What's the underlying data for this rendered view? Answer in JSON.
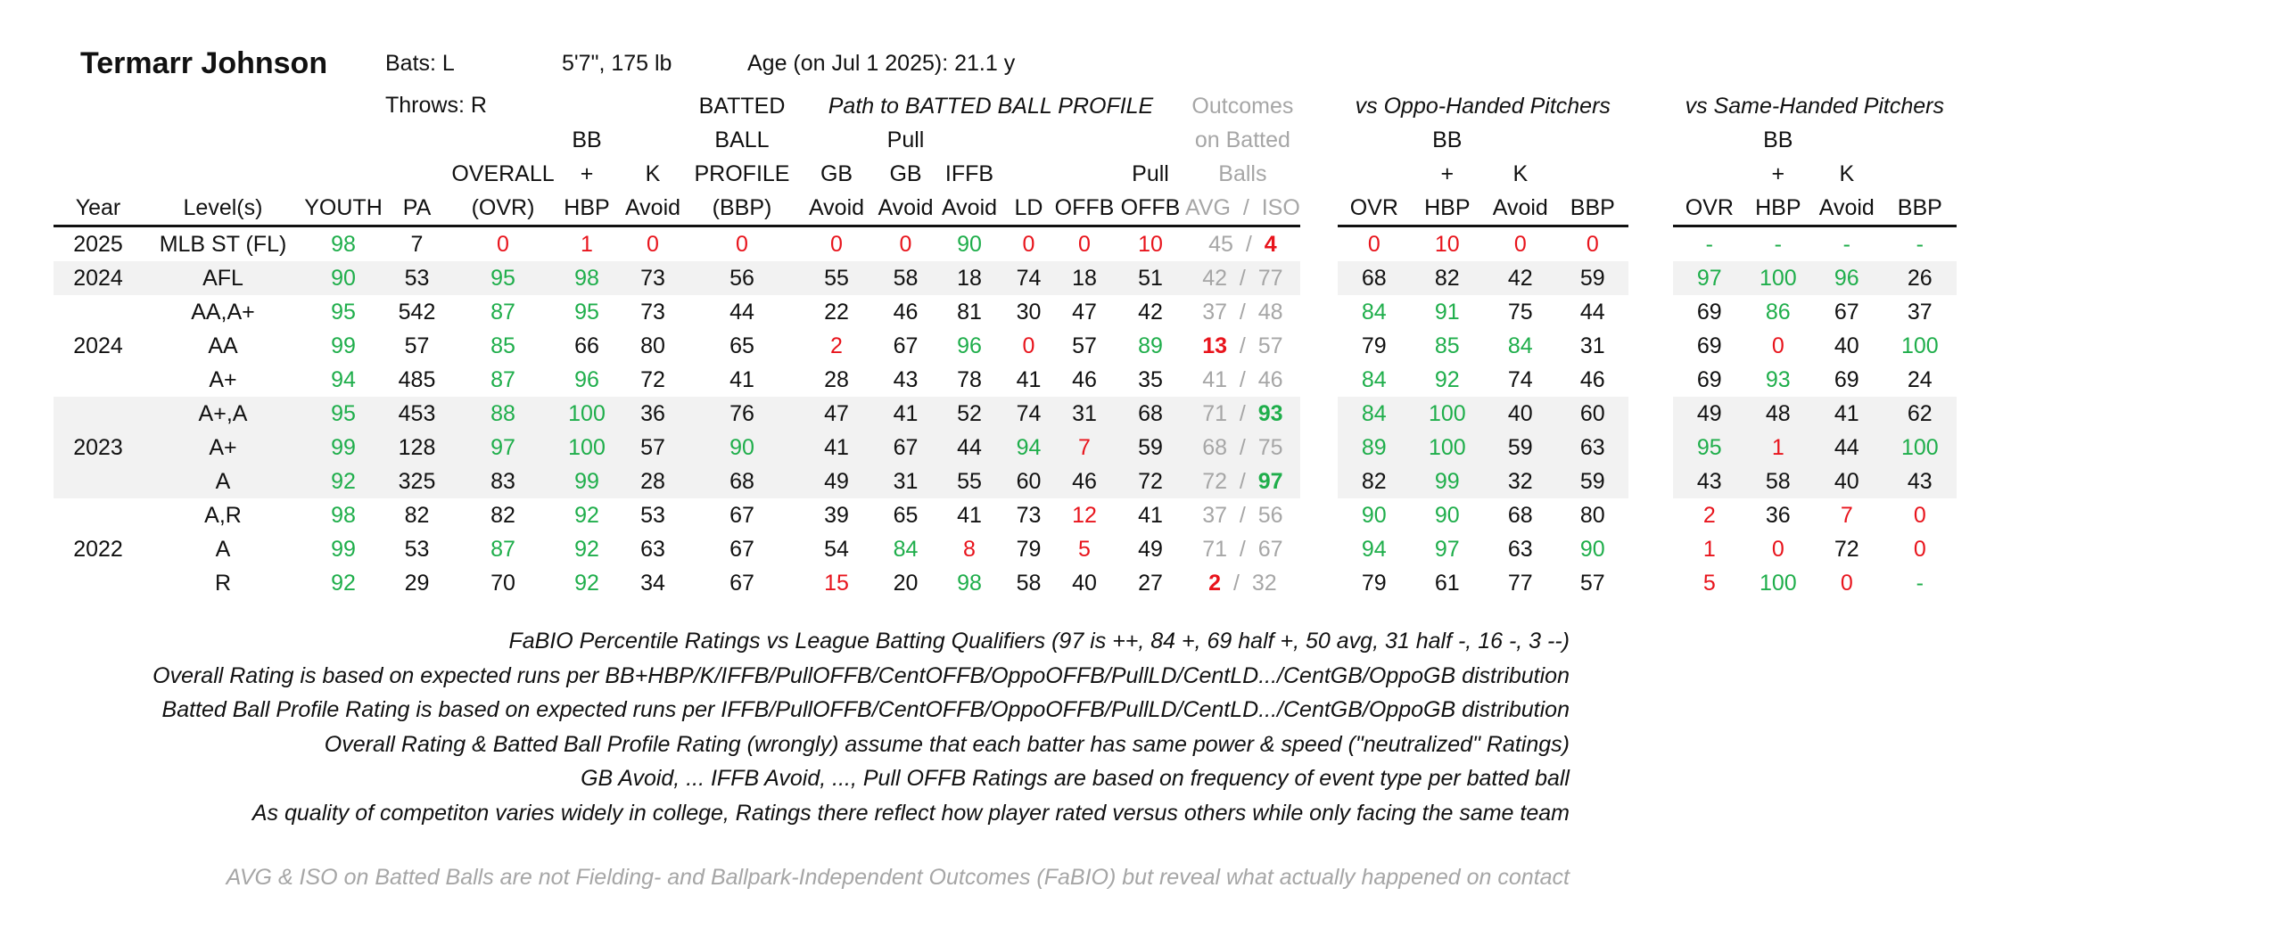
{
  "player": {
    "name": "Termarr Johnson",
    "bats": "Bats: L",
    "throws": "Throws: R",
    "height_weight": "5'7\", 175 lb",
    "age": "Age (on Jul 1 2025): 21.1 y"
  },
  "groups": {
    "bbp_path": "Path to BATTED BALL PROFILE",
    "outcomes": [
      "Outcomes",
      "on Batted",
      "Balls"
    ],
    "oppo": "vs Oppo-Handed Pitchers",
    "same": "vs Same-Handed Pitchers"
  },
  "headers": {
    "year": "Year",
    "levels": "Level(s)",
    "youth": "YOUTH",
    "pa": "PA",
    "overall": [
      "OVERALL",
      "(OVR)"
    ],
    "bbhbp": [
      "BB",
      "+",
      "HBP"
    ],
    "kavoid": [
      "K",
      "Avoid"
    ],
    "bbp": [
      "BATTED",
      "BALL",
      "PROFILE",
      "(BBP)"
    ],
    "gbavoid": [
      "GB",
      "Avoid"
    ],
    "pullgbavoid": [
      "Pull",
      "GB",
      "Avoid"
    ],
    "iffbavoid": [
      "IFFB",
      "Avoid"
    ],
    "ld": "LD",
    "offb": "OFFB",
    "pulloffb": [
      "Pull",
      "OFFB"
    ],
    "avgiso": [
      "AVG",
      "/",
      "ISO"
    ],
    "split_ovr": "OVR",
    "split_bbhbp": [
      "BB",
      "+",
      "HBP"
    ],
    "split_kavoid": [
      "K",
      "Avoid"
    ],
    "split_bbp": "BBP"
  },
  "rows": [
    {
      "year": "2025",
      "level": "MLB ST (FL)",
      "youth": "98",
      "pa": "7",
      "ovr": "0",
      "bbhbp": "1",
      "kav": "0",
      "bbp": "0",
      "gb": "0",
      "pgb": "0",
      "iffb": "90",
      "ld": "0",
      "offb": "0",
      "poffb": "10",
      "avg": "45",
      "iso": "4",
      "o_ovr": "0",
      "o_bb": "10",
      "o_k": "0",
      "o_bbp": "0",
      "s_ovr": "-",
      "s_bb": "-",
      "s_k": "-",
      "s_bbp": "-"
    },
    {
      "year": "2024",
      "level": "AFL",
      "youth": "90",
      "pa": "53",
      "ovr": "95",
      "bbhbp": "98",
      "kav": "73",
      "bbp": "56",
      "gb": "55",
      "pgb": "58",
      "iffb": "18",
      "ld": "74",
      "offb": "18",
      "poffb": "51",
      "avg": "42",
      "iso": "77",
      "o_ovr": "68",
      "o_bb": "82",
      "o_k": "42",
      "o_bbp": "59",
      "s_ovr": "97",
      "s_bb": "100",
      "s_k": "96",
      "s_bbp": "26"
    },
    {
      "year": "",
      "level": "AA,A+",
      "youth": "95",
      "pa": "542",
      "ovr": "87",
      "bbhbp": "95",
      "kav": "73",
      "bbp": "44",
      "gb": "22",
      "pgb": "46",
      "iffb": "81",
      "ld": "30",
      "offb": "47",
      "poffb": "42",
      "avg": "37",
      "iso": "48",
      "o_ovr": "84",
      "o_bb": "91",
      "o_k": "75",
      "o_bbp": "44",
      "s_ovr": "69",
      "s_bb": "86",
      "s_k": "67",
      "s_bbp": "37"
    },
    {
      "year": "2024",
      "level": "AA",
      "youth": "99",
      "pa": "57",
      "ovr": "85",
      "bbhbp": "66",
      "kav": "80",
      "bbp": "65",
      "gb": "2",
      "pgb": "67",
      "iffb": "96",
      "ld": "0",
      "offb": "57",
      "poffb": "89",
      "avg": "13",
      "iso": "57",
      "o_ovr": "79",
      "o_bb": "85",
      "o_k": "84",
      "o_bbp": "31",
      "s_ovr": "69",
      "s_bb": "0",
      "s_k": "40",
      "s_bbp": "100"
    },
    {
      "year": "",
      "level": "A+",
      "youth": "94",
      "pa": "485",
      "ovr": "87",
      "bbhbp": "96",
      "kav": "72",
      "bbp": "41",
      "gb": "28",
      "pgb": "43",
      "iffb": "78",
      "ld": "41",
      "offb": "46",
      "poffb": "35",
      "avg": "41",
      "iso": "46",
      "o_ovr": "84",
      "o_bb": "92",
      "o_k": "74",
      "o_bbp": "46",
      "s_ovr": "69",
      "s_bb": "93",
      "s_k": "69",
      "s_bbp": "24"
    },
    {
      "year": "",
      "level": "A+,A",
      "youth": "95",
      "pa": "453",
      "ovr": "88",
      "bbhbp": "100",
      "kav": "36",
      "bbp": "76",
      "gb": "47",
      "pgb": "41",
      "iffb": "52",
      "ld": "74",
      "offb": "31",
      "poffb": "68",
      "avg": "71",
      "iso": "93",
      "o_ovr": "84",
      "o_bb": "100",
      "o_k": "40",
      "o_bbp": "60",
      "s_ovr": "49",
      "s_bb": "48",
      "s_k": "41",
      "s_bbp": "62"
    },
    {
      "year": "2023",
      "level": "A+",
      "youth": "99",
      "pa": "128",
      "ovr": "97",
      "bbhbp": "100",
      "kav": "57",
      "bbp": "90",
      "gb": "41",
      "pgb": "67",
      "iffb": "44",
      "ld": "94",
      "offb": "7",
      "poffb": "59",
      "avg": "68",
      "iso": "75",
      "o_ovr": "89",
      "o_bb": "100",
      "o_k": "59",
      "o_bbp": "63",
      "s_ovr": "95",
      "s_bb": "1",
      "s_k": "44",
      "s_bbp": "100"
    },
    {
      "year": "",
      "level": "A",
      "youth": "92",
      "pa": "325",
      "ovr": "83",
      "bbhbp": "99",
      "kav": "28",
      "bbp": "68",
      "gb": "49",
      "pgb": "31",
      "iffb": "55",
      "ld": "60",
      "offb": "46",
      "poffb": "72",
      "avg": "72",
      "iso": "97",
      "o_ovr": "82",
      "o_bb": "99",
      "o_k": "32",
      "o_bbp": "59",
      "s_ovr": "43",
      "s_bb": "58",
      "s_k": "40",
      "s_bbp": "43"
    },
    {
      "year": "",
      "level": "A,R",
      "youth": "98",
      "pa": "82",
      "ovr": "82",
      "bbhbp": "92",
      "kav": "53",
      "bbp": "67",
      "gb": "39",
      "pgb": "65",
      "iffb": "41",
      "ld": "73",
      "offb": "12",
      "poffb": "41",
      "avg": "37",
      "iso": "56",
      "o_ovr": "90",
      "o_bb": "90",
      "o_k": "68",
      "o_bbp": "80",
      "s_ovr": "2",
      "s_bb": "36",
      "s_k": "7",
      "s_bbp": "0"
    },
    {
      "year": "2022",
      "level": "A",
      "youth": "99",
      "pa": "53",
      "ovr": "87",
      "bbhbp": "92",
      "kav": "63",
      "bbp": "67",
      "gb": "54",
      "pgb": "84",
      "iffb": "8",
      "ld": "79",
      "offb": "5",
      "poffb": "49",
      "avg": "71",
      "iso": "67",
      "o_ovr": "94",
      "o_bb": "97",
      "o_k": "63",
      "o_bbp": "90",
      "s_ovr": "1",
      "s_bb": "0",
      "s_k": "72",
      "s_bbp": "0"
    },
    {
      "year": "",
      "level": "R",
      "youth": "92",
      "pa": "29",
      "ovr": "70",
      "bbhbp": "92",
      "kav": "34",
      "bbp": "67",
      "gb": "15",
      "pgb": "20",
      "iffb": "98",
      "ld": "58",
      "offb": "40",
      "poffb": "27",
      "avg": "2",
      "iso": "32",
      "o_ovr": "79",
      "o_bb": "61",
      "o_k": "77",
      "o_bbp": "57",
      "s_ovr": "5",
      "s_bb": "100",
      "s_k": "0",
      "s_bbp": "-"
    }
  ],
  "notes": [
    "FaBIO Percentile Ratings vs League Batting Qualifiers (97 is ++, 84 +, 69 half +, 50 avg, 31 half -, 16 -, 3 --)",
    "Overall Rating is based on expected runs per BB+HBP/K/IFFB/PullOFFB/CentOFFB/OppoOFFB/PullLD/CentLD.../CentGB/OppoGB distribution",
    "Batted Ball Profile Rating is based on expected runs per IFFB/PullOFFB/CentOFFB/OppoOFFB/PullLD/CentLD.../CentGB/OppoGB distribution",
    "Overall Rating & Batted Ball Profile Rating (wrongly) assume that each batter has same power & speed (\"neutralized\" Ratings)",
    "GB Avoid, ... IFFB Avoid, ..., Pull OFFB Ratings are based on frequency of event type per batted ball",
    "As quality of competiton varies widely in college, Ratings there reflect how player rated versus others while only facing the same team"
  ],
  "gray_note": "AVG & ISO on Batted Balls are not Fielding- and Ballpark-Independent Outcomes (FaBIO) but reveal what actually happened on contact",
  "colors": {
    "good": "#1fae4b",
    "bad": "#e8141c",
    "muted": "#a6a6a6",
    "shade": "#f2f2f2"
  }
}
